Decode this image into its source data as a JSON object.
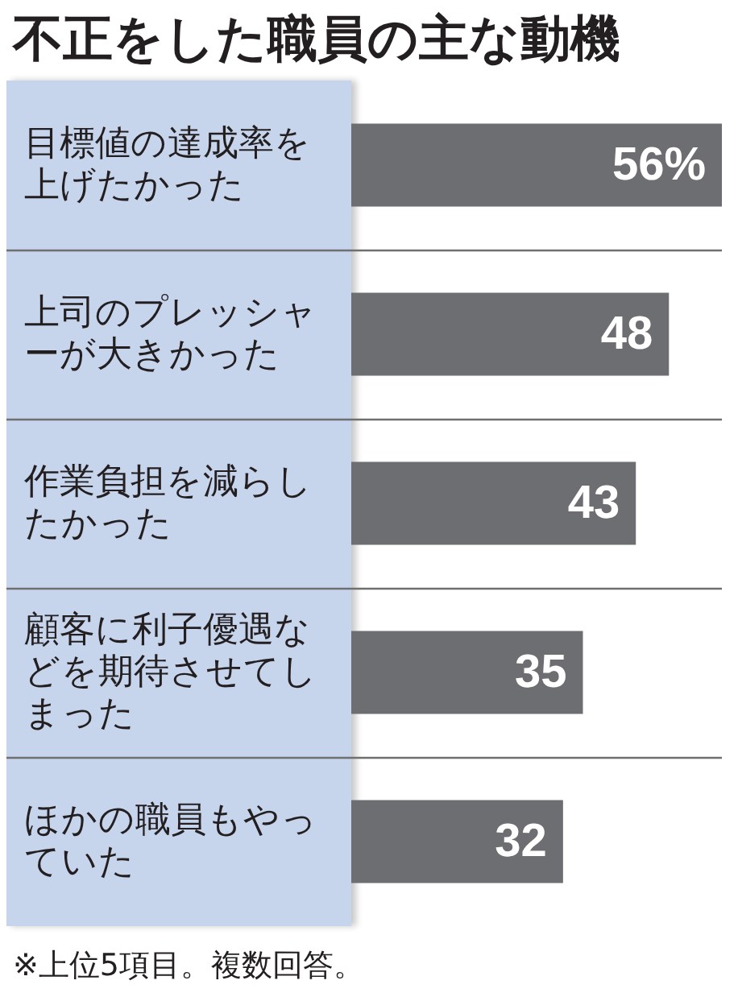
{
  "chart_data": {
    "type": "bar",
    "orientation": "horizontal",
    "title": "不正をした職員の主な動機",
    "categories": [
      "目標値の達成率を上げたかった",
      "上司のプレッシャーが大きかった",
      "作業負担を減らしたかった",
      "顧客に利子優遇などを期待させてしまった",
      "ほかの職員もやっていた"
    ],
    "values": [
      56,
      48,
      43,
      35,
      32
    ],
    "value_labels": [
      "56%",
      "48",
      "43",
      "35",
      "32"
    ],
    "color": "#6d6e71",
    "grid": "y",
    "tick_labels": "y",
    "annotations": [
      "※上位5項目。複数回答。"
    ]
  }
}
